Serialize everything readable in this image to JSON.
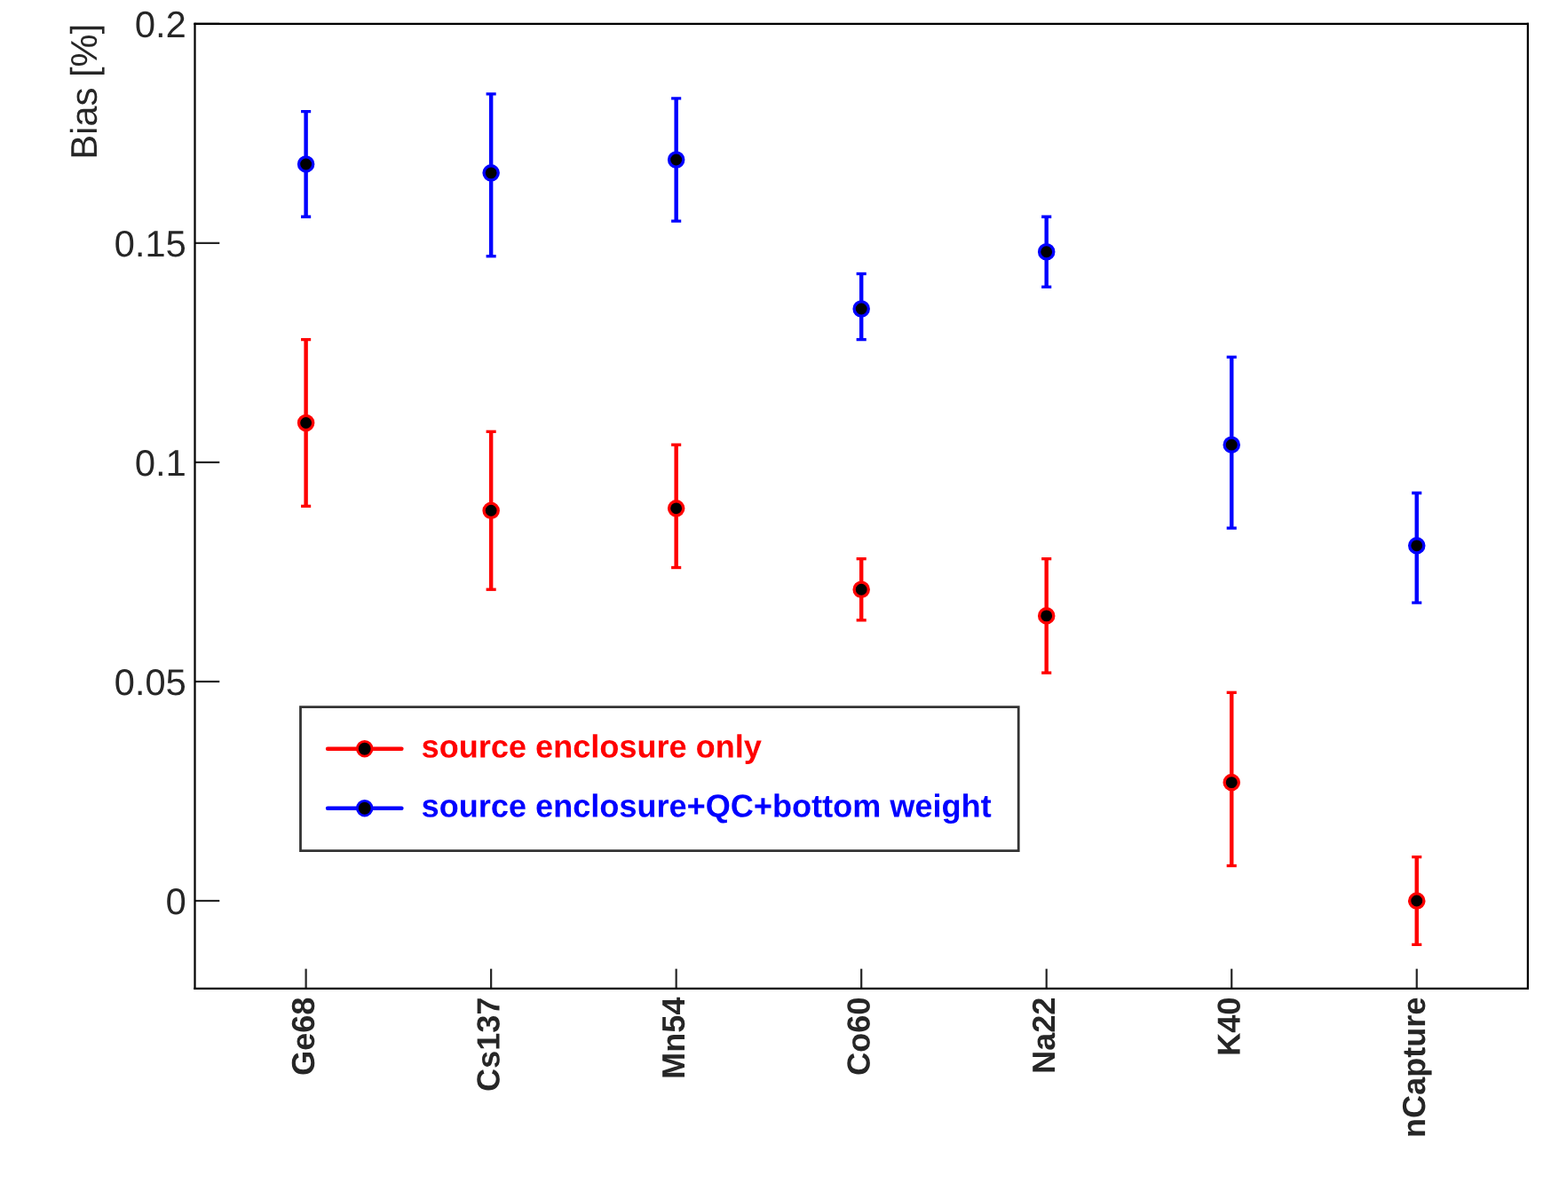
{
  "chart_data": {
    "type": "scatter",
    "ylabel": "Bias [%]",
    "categories": [
      "Ge68",
      "Cs137",
      "Mn54",
      "Co60",
      "Na22",
      "K40",
      "nCapture"
    ],
    "series": [
      {
        "name": "source enclosure only",
        "color": "#ff0000",
        "values": [
          0.109,
          0.089,
          0.0895,
          0.071,
          0.065,
          0.027,
          0.0
        ],
        "errors": [
          [
            0.09,
            0.128
          ],
          [
            0.071,
            0.107
          ],
          [
            0.076,
            0.104
          ],
          [
            0.064,
            0.078
          ],
          [
            0.052,
            0.078
          ],
          [
            0.008,
            0.0475
          ],
          [
            -0.01,
            0.01
          ]
        ]
      },
      {
        "name": "source enclosure+QC+bottom weight",
        "color": "#0000ff",
        "values": [
          0.168,
          0.166,
          0.169,
          0.135,
          0.148,
          0.104,
          0.081
        ],
        "errors": [
          [
            0.156,
            0.18
          ],
          [
            0.147,
            0.184
          ],
          [
            0.155,
            0.183
          ],
          [
            0.128,
            0.143
          ],
          [
            0.14,
            0.156
          ],
          [
            0.085,
            0.124
          ],
          [
            0.068,
            0.093
          ]
        ]
      }
    ],
    "ylim": [
      -0.02,
      0.2
    ],
    "yticks": [
      0,
      0.05,
      0.1,
      0.15,
      0.2
    ],
    "marker": "circle",
    "legend": "bottom left",
    "grid": false
  }
}
